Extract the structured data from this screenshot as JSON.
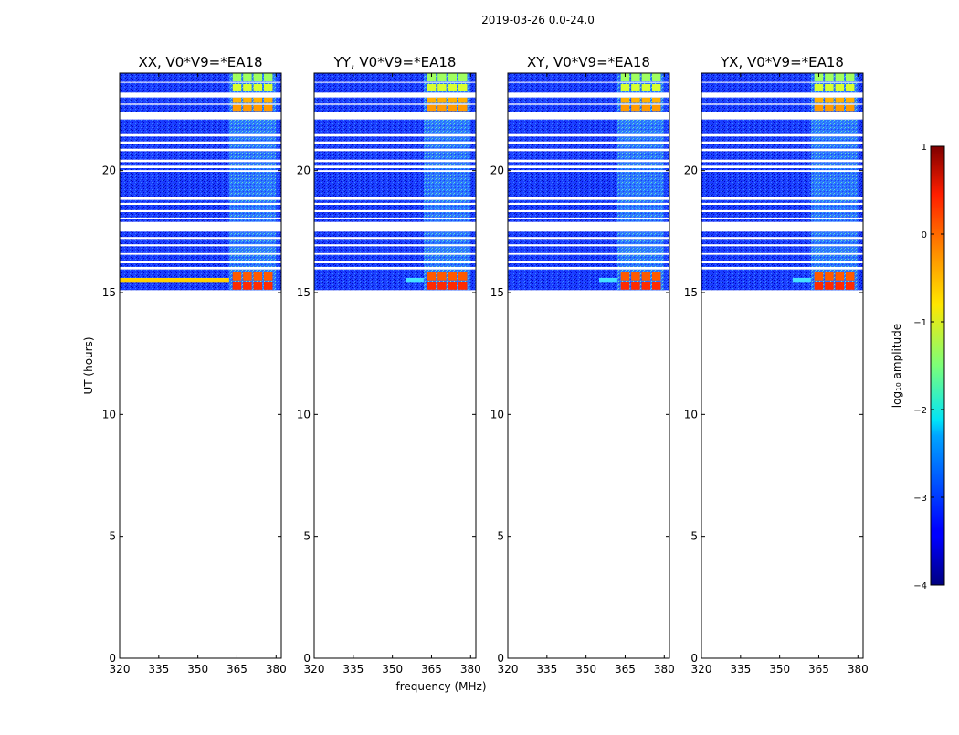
{
  "suptitle": "2019-03-26 0.0-24.0",
  "chart_data": {
    "type": "heatmap",
    "xlabel": "frequency (MHz)",
    "ylabel": "UT (hours)",
    "xlim": [
      320,
      382
    ],
    "ylim": [
      0,
      24
    ],
    "xticks": [
      320,
      335,
      350,
      365,
      380
    ],
    "yticks": [
      0,
      5,
      10,
      15,
      20
    ],
    "panels": [
      {
        "title": "XX, V0*V9=*EA18",
        "polarization": "XX",
        "strong_rfi_band": "channels",
        "strong_low_band_strip": true
      },
      {
        "title": "YY, V0*V9=*EA18",
        "polarization": "YY",
        "strong_rfi_band": "channels",
        "strong_low_band_strip": false
      },
      {
        "title": "XY, V0*V9=*EA18",
        "polarization": "XY",
        "strong_rfi_band": "channels",
        "strong_low_band_strip": false
      },
      {
        "title": "YX, V0*V9=*EA18",
        "polarization": "YX",
        "strong_rfi_band": "channels",
        "strong_low_band_strip": false
      }
    ],
    "data_time_range_hours": [
      15.1,
      24.0
    ],
    "flagged_time_gaps_hours": [
      [
        23.0,
        23.2
      ],
      [
        22.1,
        22.4
      ],
      [
        21.4,
        21.5
      ],
      [
        21.1,
        21.2
      ],
      [
        20.8,
        20.9
      ],
      [
        20.35,
        20.45
      ],
      [
        20.1,
        20.2
      ],
      [
        19.95,
        20.02
      ],
      [
        18.8,
        18.9
      ],
      [
        18.6,
        18.68
      ],
      [
        18.3,
        18.38
      ],
      [
        18.0,
        18.08
      ],
      [
        17.5,
        17.9
      ],
      [
        17.2,
        17.28
      ],
      [
        16.9,
        16.98
      ],
      [
        16.55,
        16.62
      ],
      [
        16.2,
        16.28
      ],
      [
        15.95,
        16.05
      ],
      [
        22.7,
        22.75
      ],
      [
        23.6,
        23.64
      ]
    ],
    "rfi_channel_edges_mhz": [
      363,
      367,
      371,
      375,
      379
    ],
    "colorbar": {
      "label": "log₁₀ amplitude",
      "range": [
        -4,
        1
      ],
      "ticks": [
        -4,
        -3,
        -2,
        -1,
        0,
        1
      ],
      "colormap": "jet"
    }
  },
  "tick_labels": {
    "x": [
      "320",
      "335",
      "350",
      "365",
      "380"
    ],
    "y": [
      "0",
      "5",
      "10",
      "15",
      "20"
    ],
    "cb": [
      "−4",
      "−3",
      "−2",
      "−1",
      "0",
      "1"
    ]
  }
}
